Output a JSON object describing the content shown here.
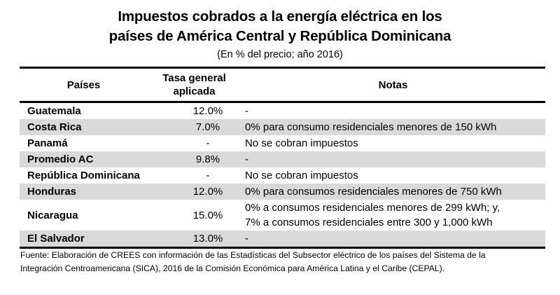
{
  "title": {
    "line1": "Impuestos cobrados a la energía eléctrica en los",
    "line2": "países de América Central y República Dominicana",
    "subtitle": "(En % del precio; año 2016)"
  },
  "table": {
    "headers": {
      "country": "Países",
      "rate_line1": "Tasa general",
      "rate_line2": "aplicada",
      "notes": "Notas"
    },
    "rows": [
      {
        "country": "Guatemala",
        "rate": "12.0%",
        "notes": [
          "-"
        ]
      },
      {
        "country": "Costa Rica",
        "rate": "7.0%",
        "notes": [
          "0% para consumo residenciales menores de 150 kWh"
        ]
      },
      {
        "country": "Panamá",
        "rate": "-",
        "notes": [
          "No se cobran impuestos"
        ]
      },
      {
        "country": "Promedio AC",
        "rate": "9.8%",
        "notes": [
          "-"
        ]
      },
      {
        "country": "República Dominicana",
        "rate": "-",
        "notes": [
          "No se cobran impuestos"
        ]
      },
      {
        "country": "Honduras",
        "rate": "12.0%",
        "notes": [
          "0% para consumos residenciales menores de 750 kWh"
        ]
      },
      {
        "country": "Nicaragua",
        "rate": "15.0%",
        "notes": [
          "0% a consumos residenciales menores de 299 kWh; y,",
          "7% a consumos residenciales entre 300 y 1,000 kWh"
        ]
      },
      {
        "country": "El Salvador",
        "rate": "13.0%",
        "notes": [
          "-"
        ]
      }
    ]
  },
  "source": {
    "line1": "Fuente: Elaboración de CREES con información de las Estadísticas del Subsector eléctrico de los países del Sistema de la",
    "line2": "Integración Centroamericana (SICA), 2016 de la Comisión Económica para América Latina y el Caribe (CEPAL)."
  },
  "colors": {
    "stripe": "#d9d9d9",
    "border": "#000000"
  }
}
